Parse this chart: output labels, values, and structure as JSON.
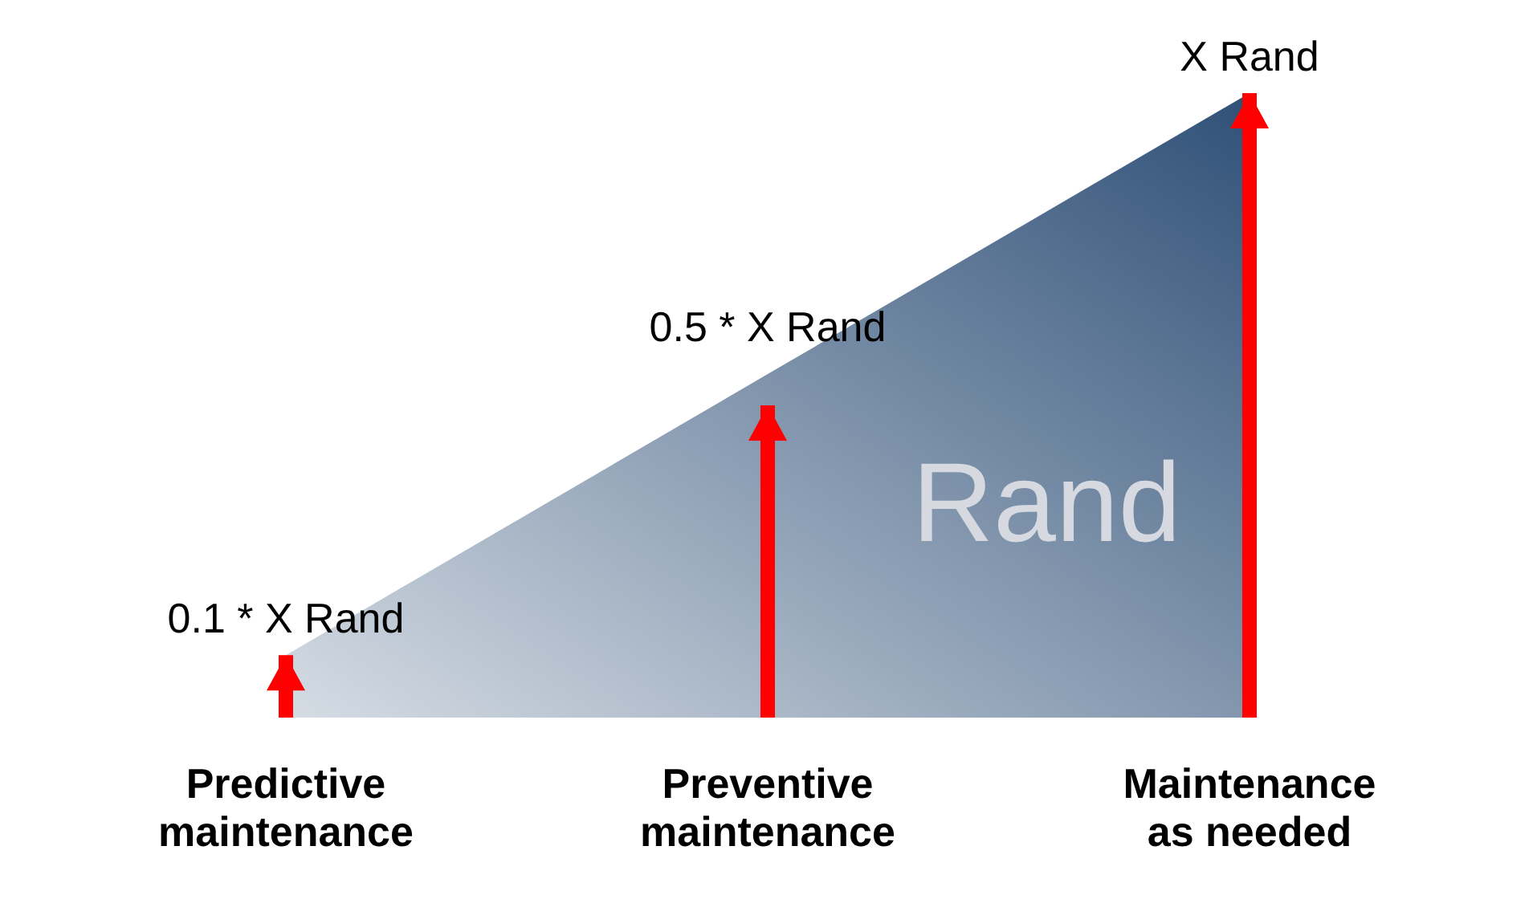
{
  "chart_data": {
    "type": "bar",
    "categories": [
      "Predictive maintenance",
      "Preventive maintenance",
      "Maintenance as needed"
    ],
    "series": [
      {
        "type": "area",
        "color": "#2f5077",
        "values": [
          0.1,
          0.55,
          1
        ]
      },
      {
        "color": "#ff0000",
        "values": [
          0.1,
          0.5,
          1
        ],
        "value_labels": [
          "0.1 * X Rand",
          "0.5 * X Rand",
          "X Rand"
        ]
      }
    ],
    "tick_labels": "x",
    "annotations": [
      "Rand"
    ],
    "legend": false
  }
}
